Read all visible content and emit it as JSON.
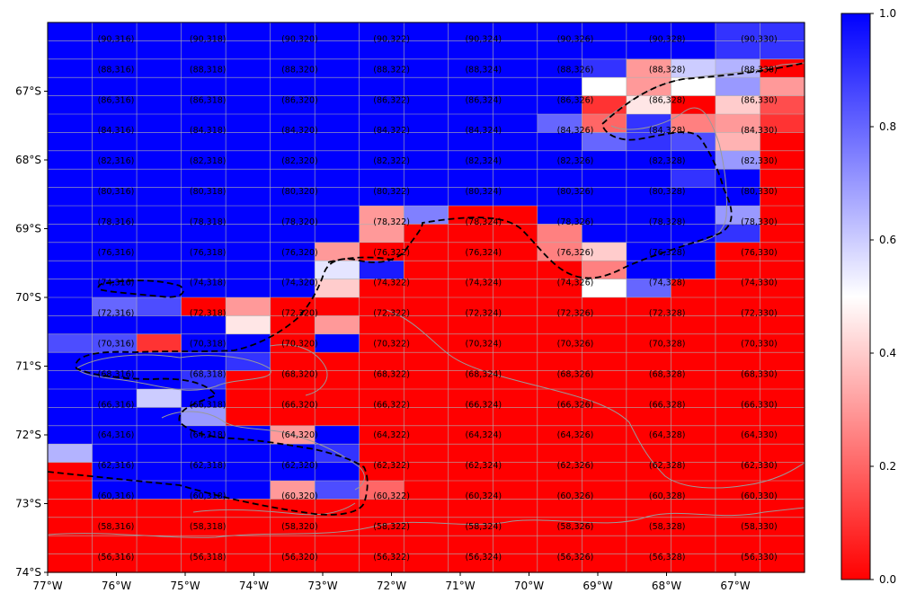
{
  "chart_data": {
    "type": "heatmap",
    "title": "",
    "xlabel": "",
    "ylabel": "",
    "x_ticks": [
      "77°W",
      "76°W",
      "75°W",
      "74°W",
      "73°W",
      "72°W",
      "71°W",
      "70°W",
      "69°W",
      "68°W",
      "67°W"
    ],
    "y_ticks": [
      "67°S",
      "68°S",
      "69°S",
      "70°S",
      "71°S",
      "72°S",
      "73°S",
      "74°S"
    ],
    "colorbar": {
      "min": 0.0,
      "max": 1.0,
      "ticks": [
        "0.0",
        "0.2",
        "0.4",
        "0.6",
        "0.8",
        "1.0"
      ],
      "colormap": "bwr_r",
      "low_color": "#ff0000",
      "mid_color": "#ffffff",
      "high_color": "#0000ff"
    },
    "grid": true,
    "cell_labels": {
      "rows": [
        "90",
        "88",
        "86",
        "84",
        "82",
        "80",
        "78",
        "76",
        "74",
        "72",
        "70",
        "68",
        "66",
        "64",
        "62",
        "60",
        "58",
        "56"
      ],
      "cols": [
        "316",
        "318",
        "320",
        "322",
        "324",
        "326",
        "328",
        "330"
      ]
    },
    "values": [
      [
        1.0,
        1.0,
        1.0,
        1.0,
        1.0,
        1.0,
        1.0,
        1.0,
        1.0,
        1.0,
        1.0,
        1.0,
        1.0,
        1.0,
        1.0,
        0.9,
        0.9
      ],
      [
        1.0,
        1.0,
        1.0,
        1.0,
        1.0,
        1.0,
        1.0,
        1.0,
        1.0,
        1.0,
        1.0,
        1.0,
        1.0,
        1.0,
        1.0,
        0.9,
        0.9
      ],
      [
        1.0,
        1.0,
        1.0,
        1.0,
        1.0,
        1.0,
        1.0,
        1.0,
        1.0,
        1.0,
        1.0,
        1.0,
        0.9,
        0.3,
        0.6,
        0.65,
        0.0
      ],
      [
        1.0,
        1.0,
        1.0,
        1.0,
        1.0,
        1.0,
        1.0,
        1.0,
        1.0,
        1.0,
        1.0,
        1.0,
        0.5,
        0.3,
        0.5,
        0.7,
        0.3
      ],
      [
        1.0,
        1.0,
        1.0,
        1.0,
        1.0,
        1.0,
        1.0,
        1.0,
        1.0,
        1.0,
        1.0,
        1.0,
        0.1,
        0.45,
        0.0,
        0.4,
        0.15
      ],
      [
        1.0,
        1.0,
        1.0,
        1.0,
        1.0,
        1.0,
        1.0,
        1.0,
        1.0,
        1.0,
        1.0,
        0.8,
        0.2,
        0.9,
        0.25,
        0.3,
        0.1
      ],
      [
        1.0,
        1.0,
        1.0,
        1.0,
        1.0,
        1.0,
        1.0,
        1.0,
        1.0,
        1.0,
        1.0,
        1.0,
        0.8,
        0.9,
        0.85,
        0.35,
        0.0
      ],
      [
        1.0,
        1.0,
        1.0,
        1.0,
        1.0,
        1.0,
        1.0,
        1.0,
        1.0,
        1.0,
        1.0,
        1.0,
        1.0,
        1.0,
        1.0,
        0.7,
        0.0
      ],
      [
        1.0,
        1.0,
        1.0,
        1.0,
        1.0,
        1.0,
        1.0,
        1.0,
        1.0,
        1.0,
        1.0,
        1.0,
        1.0,
        1.0,
        0.9,
        1.0,
        0.0
      ],
      [
        1.0,
        1.0,
        1.0,
        1.0,
        1.0,
        1.0,
        1.0,
        1.0,
        1.0,
        1.0,
        1.0,
        1.0,
        1.0,
        1.0,
        1.0,
        1.0,
        0.0
      ],
      [
        1.0,
        1.0,
        1.0,
        1.0,
        1.0,
        1.0,
        1.0,
        0.3,
        0.75,
        0.0,
        0.0,
        1.0,
        1.0,
        1.0,
        1.0,
        0.7,
        0.0
      ],
      [
        1.0,
        1.0,
        1.0,
        1.0,
        1.0,
        1.0,
        1.0,
        0.3,
        0.0,
        0.0,
        0.0,
        0.25,
        1.0,
        1.0,
        1.0,
        0.9,
        0.0
      ],
      [
        1.0,
        1.0,
        1.0,
        1.0,
        1.0,
        1.0,
        0.3,
        0.0,
        0.0,
        0.0,
        0.0,
        0.25,
        0.4,
        1.0,
        1.0,
        0.0,
        0.0
      ],
      [
        1.0,
        1.0,
        1.0,
        1.0,
        1.0,
        1.0,
        0.55,
        0.95,
        0.0,
        0.0,
        0.0,
        0.0,
        0.25,
        1.0,
        1.0,
        0.0,
        0.0
      ],
      [
        1.0,
        1.0,
        1.0,
        1.0,
        1.0,
        1.0,
        0.4,
        0.0,
        0.0,
        0.0,
        0.0,
        0.0,
        0.5,
        0.8,
        0.0,
        0.0,
        0.0
      ],
      [
        1.0,
        0.8,
        0.85,
        0.0,
        0.3,
        0.0,
        0.0,
        0.0,
        0.0,
        0.0,
        0.0,
        0.0,
        0.0,
        0.0,
        0.0,
        0.0,
        0.0
      ],
      [
        1.0,
        1.0,
        1.0,
        1.0,
        0.45,
        0.0,
        0.3,
        0.0,
        0.0,
        0.0,
        0.0,
        0.0,
        0.0,
        0.0,
        0.0,
        0.0,
        0.0
      ],
      [
        0.85,
        0.85,
        0.1,
        1.0,
        1.0,
        0.0,
        1.0,
        0.0,
        0.0,
        0.0,
        0.0,
        0.0,
        0.0,
        0.0,
        0.0,
        0.0,
        0.0
      ],
      [
        1.0,
        1.0,
        1.0,
        1.0,
        0.9,
        0.0,
        0.0,
        0.0,
        0.0,
        0.0,
        0.0,
        0.0,
        0.0,
        0.0,
        0.0,
        0.0,
        0.0
      ],
      [
        1.0,
        1.0,
        1.0,
        0.9,
        0.0,
        0.0,
        0.0,
        0.0,
        0.0,
        0.0,
        0.0,
        0.0,
        0.0,
        0.0,
        0.0,
        0.0,
        0.0
      ],
      [
        1.0,
        1.0,
        0.6,
        1.0,
        0.0,
        0.0,
        0.0,
        0.0,
        0.0,
        0.0,
        0.0,
        0.0,
        0.0,
        0.0,
        0.0,
        0.0,
        0.0
      ],
      [
        1.0,
        1.0,
        1.0,
        0.7,
        0.0,
        0.0,
        0.0,
        0.0,
        0.0,
        0.0,
        0.0,
        0.0,
        0.0,
        0.0,
        0.0,
        0.0,
        0.0
      ],
      [
        1.0,
        1.0,
        1.0,
        1.0,
        1.0,
        0.3,
        1.0,
        0.0,
        0.0,
        0.0,
        0.0,
        0.0,
        0.0,
        0.0,
        0.0,
        0.0,
        0.0
      ],
      [
        0.65,
        1.0,
        1.0,
        1.0,
        1.0,
        1.0,
        0.9,
        0.0,
        0.0,
        0.0,
        0.0,
        0.0,
        0.0,
        0.0,
        0.0,
        0.0,
        0.0
      ],
      [
        0.0,
        1.0,
        1.0,
        1.0,
        1.0,
        1.0,
        1.0,
        0.0,
        0.0,
        0.0,
        0.0,
        0.0,
        0.0,
        0.0,
        0.0,
        0.0,
        0.0
      ],
      [
        0.0,
        1.0,
        1.0,
        1.0,
        1.0,
        0.3,
        0.85,
        0.2,
        0.0,
        0.0,
        0.0,
        0.0,
        0.0,
        0.0,
        0.0,
        0.0,
        0.0
      ],
      [
        0.0,
        0.0,
        0.0,
        0.0,
        0.0,
        0.0,
        0.0,
        0.0,
        0.0,
        0.0,
        0.0,
        0.0,
        0.0,
        0.0,
        0.0,
        0.0,
        0.0
      ],
      [
        0.0,
        0.0,
        0.0,
        0.0,
        0.0,
        0.0,
        0.0,
        0.0,
        0.0,
        0.0,
        0.0,
        0.0,
        0.0,
        0.0,
        0.0,
        0.0,
        0.0
      ],
      [
        0.0,
        0.0,
        0.0,
        0.0,
        0.0,
        0.0,
        0.0,
        0.0,
        0.0,
        0.0,
        0.0,
        0.0,
        0.0,
        0.0,
        0.0,
        0.0,
        0.0
      ],
      [
        0.0,
        0.0,
        0.0,
        0.0,
        0.0,
        0.0,
        0.0,
        0.0,
        0.0,
        0.0,
        0.0,
        0.0,
        0.0,
        0.0,
        0.0,
        0.0,
        0.0
      ]
    ]
  }
}
